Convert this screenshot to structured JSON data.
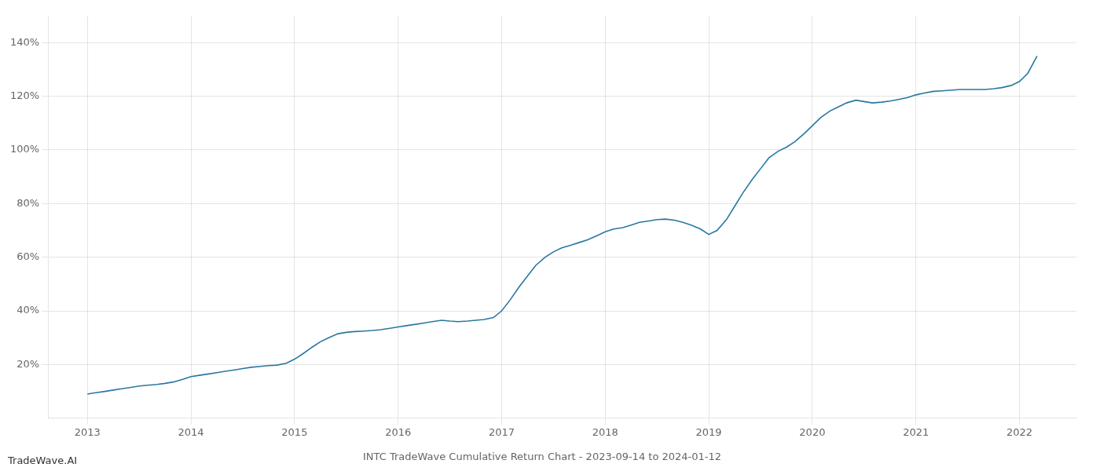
{
  "chart_data": {
    "type": "line",
    "title": "INTC TradeWave Cumulative Return Chart - 2023-09-14 to 2024-01-12",
    "annotations": [
      "TradeWave.AI"
    ],
    "color": "#2878a0",
    "grid": true,
    "x": [
      2013.0,
      2013.08,
      2013.17,
      2013.25,
      2013.33,
      2013.42,
      2013.5,
      2013.58,
      2013.67,
      2013.75,
      2013.83,
      2013.92,
      2014.0,
      2014.08,
      2014.17,
      2014.25,
      2014.33,
      2014.42,
      2014.5,
      2014.58,
      2014.67,
      2014.75,
      2014.83,
      2014.92,
      2015.0,
      2015.08,
      2015.17,
      2015.25,
      2015.33,
      2015.42,
      2015.5,
      2015.58,
      2015.67,
      2015.75,
      2015.83,
      2015.92,
      2016.0,
      2016.08,
      2016.17,
      2016.25,
      2016.33,
      2016.42,
      2016.5,
      2016.58,
      2016.67,
      2016.75,
      2016.83,
      2016.92,
      2017.0,
      2017.08,
      2017.17,
      2017.25,
      2017.33,
      2017.42,
      2017.5,
      2017.58,
      2017.67,
      2017.75,
      2017.83,
      2017.92,
      2018.0,
      2018.08,
      2018.17,
      2018.25,
      2018.33,
      2018.42,
      2018.5,
      2018.58,
      2018.67,
      2018.75,
      2018.83,
      2018.92,
      2019.0,
      2019.08,
      2019.17,
      2019.25,
      2019.33,
      2019.42,
      2019.5,
      2019.58,
      2019.67,
      2019.75,
      2019.83,
      2019.92,
      2020.0,
      2020.08,
      2020.17,
      2020.25,
      2020.33,
      2020.42,
      2020.5,
      2020.58,
      2020.67,
      2020.75,
      2020.83,
      2020.92,
      2021.0,
      2021.08,
      2021.17,
      2021.25,
      2021.33,
      2021.42,
      2021.5,
      2021.58,
      2021.67,
      2021.75,
      2021.83,
      2021.92,
      2022.0,
      2022.08,
      2022.17
    ],
    "values": [
      9,
      9.5,
      10,
      10.5,
      11,
      11.5,
      12,
      12.3,
      12.6,
      13.0,
      13.5,
      14.5,
      15.5,
      16.0,
      16.5,
      17.0,
      17.5,
      18.0,
      18.5,
      19.0,
      19.3,
      19.6,
      19.8,
      20.5,
      22.0,
      24.0,
      26.5,
      28.5,
      30.0,
      31.5,
      32.0,
      32.3,
      32.5,
      32.7,
      33.0,
      33.5,
      34.0,
      34.5,
      35.0,
      35.5,
      36.0,
      36.5,
      36.2,
      36.0,
      36.2,
      36.5,
      36.8,
      37.5,
      40.0,
      44.0,
      49.0,
      53.0,
      57.0,
      60.0,
      62.0,
      63.5,
      64.5,
      65.5,
      66.5,
      68.0,
      69.5,
      70.5,
      71.0,
      72.0,
      73.0,
      73.5,
      74.0,
      74.2,
      73.8,
      73.0,
      72.0,
      70.5,
      68.5,
      70.0,
      74.0,
      79.0,
      84.0,
      89.0,
      93.0,
      97.0,
      99.5,
      101.0,
      103.0,
      106.0,
      109.0,
      112.0,
      114.5,
      116.0,
      117.5,
      118.5,
      118.0,
      117.5,
      117.8,
      118.2,
      118.8,
      119.5,
      120.5,
      121.2,
      121.8,
      122.0,
      122.2,
      122.5,
      122.5,
      122.5,
      122.5,
      122.8,
      123.2,
      124.0,
      125.5,
      128.5,
      135.0
    ],
    "xlim": [
      2012.62,
      2022.55
    ],
    "xticks": [
      2013,
      2014,
      2015,
      2016,
      2017,
      2018,
      2019,
      2020,
      2021,
      2022
    ],
    "ylim": [
      0,
      150
    ],
    "yticks": [
      {
        "value": 20,
        "label": "20%"
      },
      {
        "value": 40,
        "label": "40%"
      },
      {
        "value": 60,
        "label": "60%"
      },
      {
        "value": 80,
        "label": "80%"
      },
      {
        "value": 100,
        "label": "100%"
      },
      {
        "value": 120,
        "label": "120%"
      },
      {
        "value": 140,
        "label": "140%"
      }
    ]
  }
}
